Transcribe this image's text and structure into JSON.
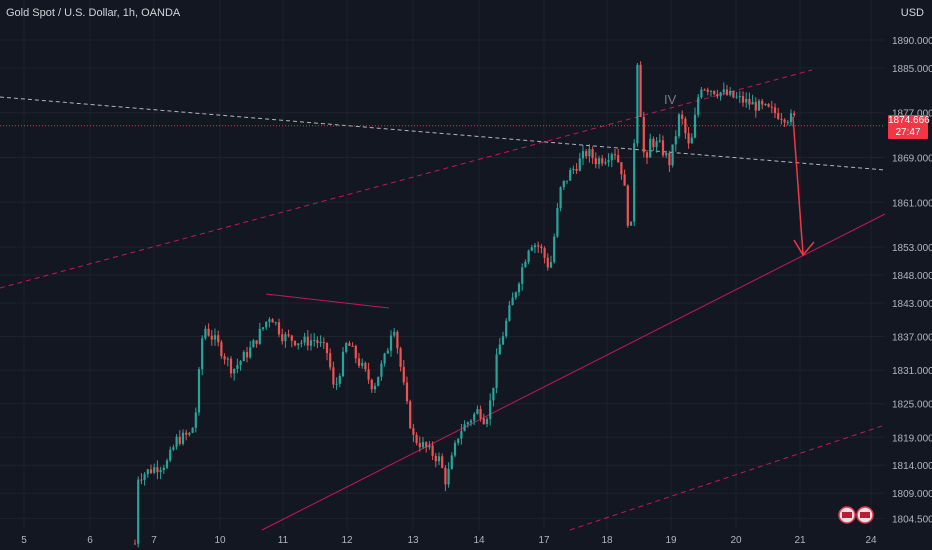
{
  "header": {
    "title": "Gold Spot / U.S. Dollar, 1h, OANDA",
    "currency": "USD"
  },
  "price_tag": {
    "price": "1874.666",
    "countdown": "27:47",
    "color": "#f23645"
  },
  "annotations": {
    "wave_label": "IV"
  },
  "colors": {
    "up": "#26a69a",
    "down": "#ef5350",
    "background": "#131722",
    "grid": "#1e222d",
    "channel": "#c2185b",
    "arrow": "#f23645"
  },
  "chart_data": {
    "type": "candlestick",
    "x_tick_labels": [
      "5",
      "6",
      "7",
      "10",
      "11",
      "12",
      "13",
      "14",
      "17",
      "18",
      "19",
      "20",
      "21",
      "24"
    ],
    "y_tick_labels": [
      "1890.000",
      "1885.000",
      "1877.000",
      "1869.000",
      "1861.000",
      "1853.000",
      "1848.000",
      "1843.000",
      "1837.000",
      "1831.000",
      "1825.000",
      "1819.000",
      "1814.000",
      "1809.000",
      "1804.500"
    ],
    "y_tick_values": [
      1890,
      1885,
      1877,
      1869,
      1861,
      1853,
      1848,
      1843,
      1837,
      1831,
      1825,
      1819,
      1814,
      1809,
      1804.5
    ],
    "ylim": [
      1803.5,
      1896.5
    ],
    "last_price": 1874.666,
    "price_path": [
      [
        6.7,
        1800
      ],
      [
        6.75,
        1812
      ],
      [
        7.0,
        1813.5
      ],
      [
        7.3,
        1814.5
      ],
      [
        7.5,
        1818.5
      ],
      [
        7.8,
        1819.5
      ],
      [
        9.7,
        1822
      ],
      [
        9.8,
        1839
      ],
      [
        10.0,
        1835
      ],
      [
        10.2,
        1831
      ],
      [
        10.5,
        1835
      ],
      [
        10.8,
        1841
      ],
      [
        11.0,
        1837
      ],
      [
        11.3,
        1836
      ],
      [
        11.5,
        1836.5
      ],
      [
        11.7,
        1834
      ],
      [
        11.8,
        1827
      ],
      [
        12.0,
        1836
      ],
      [
        12.2,
        1832
      ],
      [
        12.4,
        1828
      ],
      [
        12.6,
        1834
      ],
      [
        12.7,
        1840
      ],
      [
        12.9,
        1825
      ],
      [
        13.0,
        1819
      ],
      [
        13.2,
        1817
      ],
      [
        13.4,
        1815
      ],
      [
        13.5,
        1811
      ],
      [
        13.7,
        1820
      ],
      [
        14.0,
        1824
      ],
      [
        14.2,
        1822
      ],
      [
        14.4,
        1826
      ],
      [
        14.6,
        1834
      ],
      [
        14.8,
        1838
      ],
      [
        15.0,
        1842
      ],
      [
        15.2,
        1848
      ],
      [
        15.4,
        1854
      ],
      [
        15.6,
        1853
      ],
      [
        15.8,
        1849
      ],
      [
        16.0,
        1863
      ],
      [
        16.2,
        1866
      ],
      [
        16.4,
        1868
      ],
      [
        16.6,
        1870
      ],
      [
        16.8,
        1868.5
      ],
      [
        17.0,
        1869
      ],
      [
        17.2,
        1870.5
      ],
      [
        17.4,
        1866
      ],
      [
        17.5,
        1858
      ],
      [
        17.6,
        1856
      ],
      [
        17.7,
        1889
      ],
      [
        17.8,
        1876
      ],
      [
        17.9,
        1866
      ],
      [
        18.0,
        1872
      ],
      [
        18.2,
        1871
      ],
      [
        18.4,
        1868
      ],
      [
        18.6,
        1877
      ],
      [
        18.8,
        1870
      ],
      [
        19.0,
        1882
      ],
      [
        19.1,
        1876
      ]
    ],
    "x_range": [
      4.55,
      24.55
    ],
    "grid": true
  }
}
